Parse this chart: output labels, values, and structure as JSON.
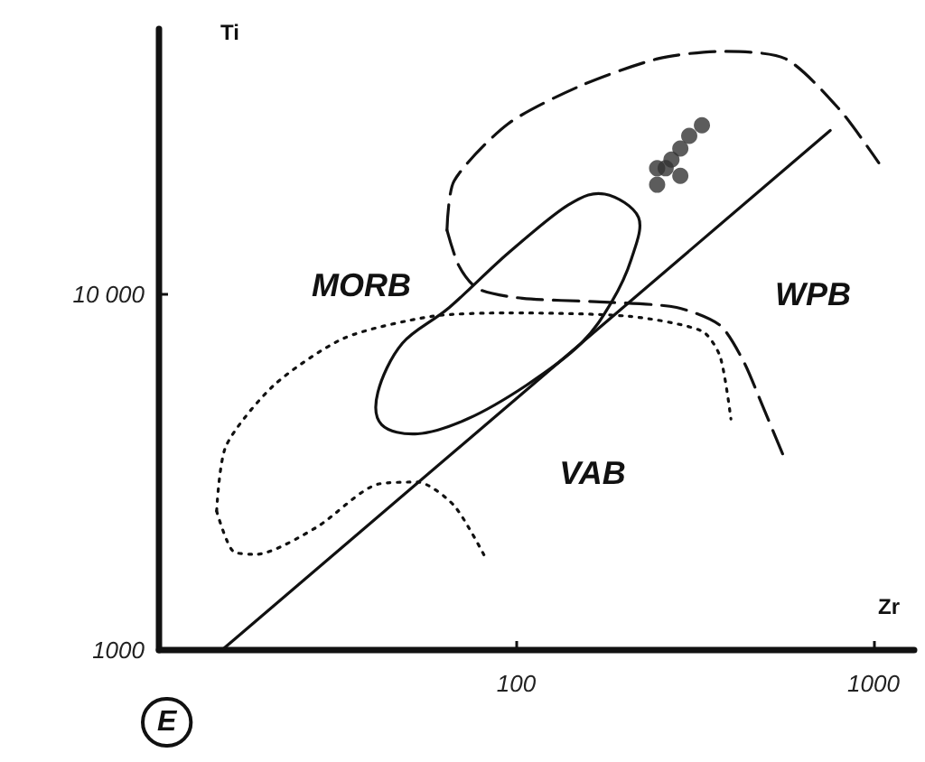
{
  "chart_data": {
    "type": "line",
    "xlabel": "Zr",
    "ylabel": "Ti",
    "log": "xy",
    "xlim": [
      10,
      1300
    ],
    "ylim": [
      1000,
      56000
    ],
    "xticks": [
      {
        "value": 100,
        "label": "100"
      },
      {
        "value": 1000,
        "label": "1000"
      }
    ],
    "yticks": [
      {
        "value": 1000,
        "label": "1000"
      },
      {
        "value": 10000,
        "label": "10 000"
      }
    ],
    "grid": false,
    "marker": "none",
    "series": [
      {
        "line_style": "solid",
        "color": "#111111",
        "x": [
          15,
          757
        ],
        "values": [
          1000,
          29000
        ]
      },
      {
        "line_style": "dashed",
        "color": "#111111",
        "x": [
          64,
          67,
          95,
          152,
          250,
          372,
          566,
          802,
          1035
        ],
        "values": [
          15200,
          20900,
          30300,
          38800,
          46200,
          48400,
          46200,
          33300,
          23500
        ]
      },
      {
        "line_style": "dashed",
        "color": "#111111",
        "x": [
          64,
          69,
          78,
          104,
          171,
          281,
          372,
          433,
          486,
          559
        ],
        "values": [
          15200,
          12100,
          10400,
          9770,
          9550,
          9210,
          8200,
          6490,
          4950,
          3530
        ]
      },
      {
        "line_style": "dotted",
        "color": "#111111",
        "x": [
          14.5,
          15.4,
          21,
          33,
          58,
          95,
          208,
          331,
          372,
          399
        ],
        "values": [
          2460,
          3750,
          5570,
          7550,
          8690,
          8890,
          8690,
          7900,
          6710,
          4470
        ]
      },
      {
        "line_style": "dotted",
        "color": "#111111",
        "x": [
          14.5,
          16.1,
          18.7,
          27.5,
          41,
          53,
          67,
          82
        ],
        "values": [
          2460,
          1900,
          1860,
          2210,
          2930,
          2970,
          2550,
          1820
        ]
      },
      {
        "type": "scatter",
        "marker": "circle",
        "color": "#333333",
        "x": [
          331,
          305,
          288,
          272,
          262,
          248,
          248,
          288
        ],
        "values": [
          30000,
          28000,
          25800,
          24000,
          22700,
          22700,
          20400,
          21600
        ]
      }
    ],
    "annotations": [
      "MORB",
      "WPB",
      "VAB",
      "E"
    ]
  }
}
